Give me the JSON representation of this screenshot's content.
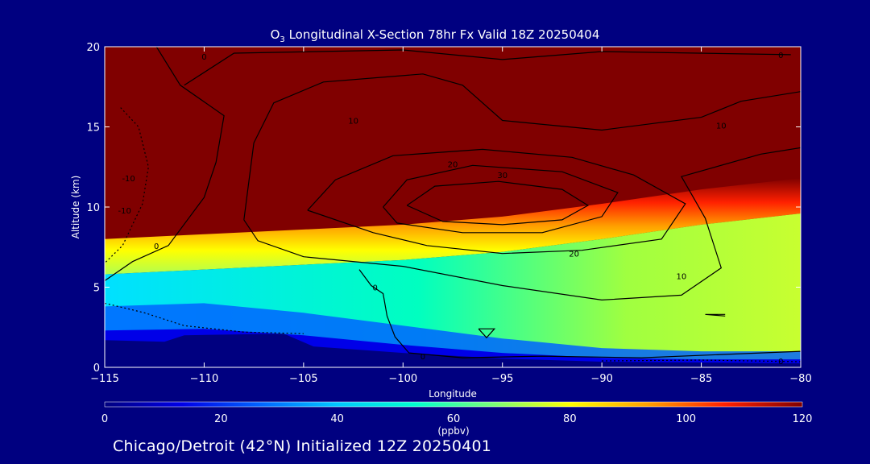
{
  "chart_data": {
    "type": "heatmap",
    "title": {
      "prefix": "O",
      "subscript": "3",
      "rest": " Longitudinal X-Section 78hr  Fx Valid 18Z 20250404"
    },
    "xlabel": "Longitude",
    "ylabel": "Altitude (km)",
    "xlim": [
      -115,
      -80
    ],
    "ylim": [
      0,
      20
    ],
    "x_ticks": [
      -115,
      -110,
      -105,
      -100,
      -95,
      -90,
      -85,
      -80
    ],
    "x_tick_labels": [
      "−115",
      "−110",
      "−105",
      "−100",
      "−95",
      "−90",
      "−85",
      "−80"
    ],
    "y_ticks": [
      0,
      5,
      10,
      15,
      20
    ],
    "y_tick_labels": [
      "0",
      "5",
      "10",
      "15",
      "20"
    ],
    "colorbar": {
      "label": "(ppbv)",
      "range": [
        0,
        120
      ],
      "ticks": [
        0,
        20,
        40,
        60,
        80,
        100,
        120
      ],
      "tick_labels": [
        "0",
        "20",
        "40",
        "60",
        "80",
        "100",
        "120"
      ],
      "colors": [
        "#000080",
        "#0000e8",
        "#0064ff",
        "#00c8ff",
        "#00ffd0",
        "#78ff78",
        "#ffff00",
        "#ffa000",
        "#ff2000",
        "#800000"
      ]
    },
    "field_summary": {
      "surface_terrain_ppb": 0,
      "boundary_layer_ppb": 20,
      "lower_troposphere_ppb": 50,
      "mid_troposphere_east_ppb": 75,
      "stratosphere_ppb": 120,
      "tropopause_altitude_km": [
        {
          "lon": -115,
          "alt": 8.0
        },
        {
          "lon": -110,
          "alt": 8.3
        },
        {
          "lon": -105,
          "alt": 8.6
        },
        {
          "lon": -100,
          "alt": 8.9
        },
        {
          "lon": -95,
          "alt": 9.4
        },
        {
          "lon": -90,
          "alt": 10.2
        },
        {
          "lon": -85,
          "alt": 11.1
        },
        {
          "lon": -80,
          "alt": 11.8
        }
      ]
    },
    "contour_labels": [
      {
        "text": "0",
        "lon": -110,
        "alt": 19.4
      },
      {
        "text": "10",
        "lon": -102.5,
        "alt": 15.4
      },
      {
        "text": "20",
        "lon": -97.5,
        "alt": 12.7
      },
      {
        "text": "30",
        "lon": -95,
        "alt": 12.0
      },
      {
        "text": "20",
        "lon": -91.4,
        "alt": 7.1
      },
      {
        "text": "10",
        "lon": -86,
        "alt": 5.7
      },
      {
        "text": "10",
        "lon": -84,
        "alt": 15.1
      },
      {
        "text": "0",
        "lon": -81,
        "alt": 19.5
      },
      {
        "text": "0",
        "lon": -112.4,
        "alt": 7.6
      },
      {
        "text": "0",
        "lon": -101.4,
        "alt": 5.0
      },
      {
        "text": "0",
        "lon": -99,
        "alt": 0.7
      },
      {
        "text": "0",
        "lon": -81,
        "alt": 0.4
      },
      {
        "text": "-10",
        "lon": -114,
        "alt": 9.8
      },
      {
        "text": "-10",
        "lon": -113.8,
        "alt": 11.8
      }
    ]
  },
  "footer": "Chicago/Detroit (42°N) Initialized 12Z 20250401"
}
